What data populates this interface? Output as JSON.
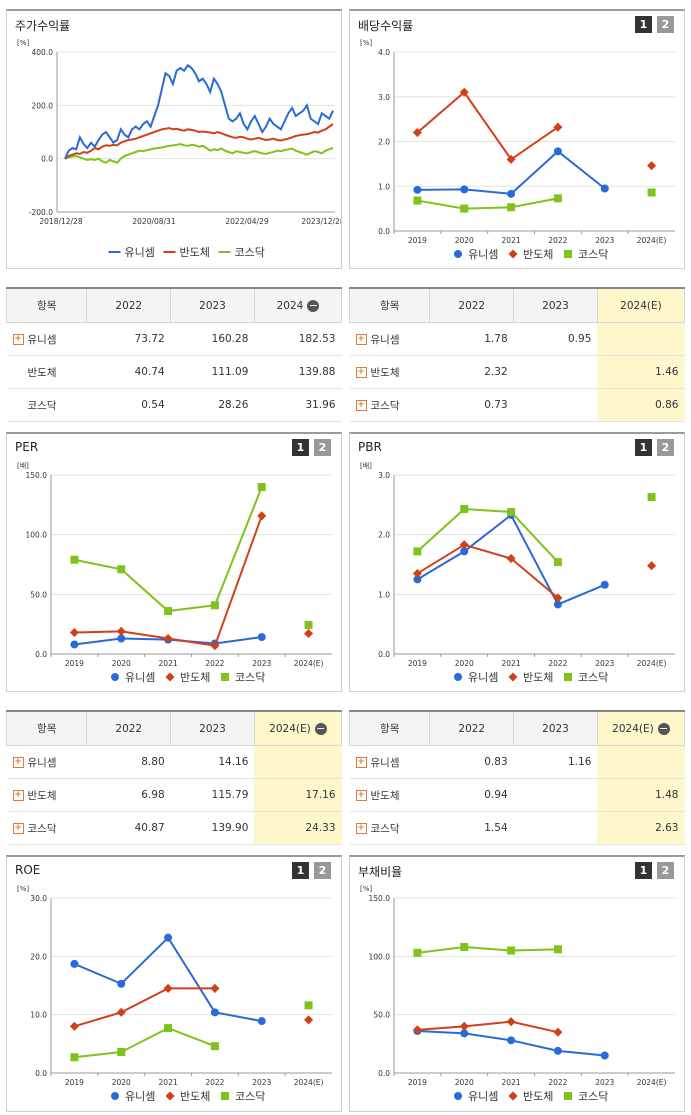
{
  "panels": {
    "price": {
      "title": "주가수익률"
    },
    "dividend": {
      "title": "배당수익률",
      "btn1": "1",
      "btn2": "2"
    },
    "per": {
      "title": "PER",
      "btn1": "1",
      "btn2": "2"
    },
    "pbr": {
      "title": "PBR",
      "btn1": "1",
      "btn2": "2"
    },
    "roe": {
      "title": "ROE",
      "btn1": "1",
      "btn2": "2"
    },
    "debt": {
      "title": "부채비율",
      "btn1": "1",
      "btn2": "2"
    }
  },
  "legend": [
    "유니셈",
    "반도체",
    "코스닥"
  ],
  "colors": {
    "series1": "#2a6ad8",
    "series2": "#d2401a",
    "series3": "#7fc31c"
  },
  "chart_data": [
    {
      "id": "price",
      "type": "line",
      "unit": "[%]",
      "yticks": [
        "400.0",
        "200.0",
        "0.0",
        "-200.0"
      ],
      "ylim": [
        -200,
        400
      ],
      "xticks": [
        "2018/12/28",
        "2020/08/31",
        "2022/04/29",
        "2023/12/28"
      ],
      "series": [
        {
          "name": "유니셈",
          "values": [
            0,
            30,
            40,
            35,
            80,
            55,
            40,
            60,
            45,
            70,
            90,
            100,
            80,
            60,
            70,
            110,
            90,
            80,
            110,
            120,
            110,
            130,
            140,
            120,
            160,
            200,
            260,
            320,
            310,
            280,
            330,
            340,
            330,
            350,
            340,
            320,
            290,
            300,
            280,
            250,
            300,
            280,
            250,
            200,
            150,
            140,
            150,
            170,
            130,
            110,
            140,
            160,
            130,
            100,
            120,
            150,
            130,
            120,
            110,
            140,
            170,
            190,
            160,
            170,
            180,
            200,
            150,
            140,
            130,
            170,
            160,
            150,
            180
          ]
        },
        {
          "name": "반도체",
          "values": [
            0,
            10,
            15,
            20,
            18,
            25,
            22,
            30,
            40,
            35,
            45,
            50,
            48,
            52,
            50,
            60,
            65,
            70,
            72,
            75,
            80,
            85,
            90,
            95,
            100,
            105,
            110,
            112,
            115,
            110,
            112,
            108,
            105,
            110,
            108,
            105,
            100,
            102,
            100,
            98,
            95,
            100,
            95,
            90,
            85,
            80,
            78,
            82,
            80,
            75,
            72,
            75,
            78,
            74,
            70,
            72,
            75,
            70,
            68,
            72,
            75,
            80,
            85,
            88,
            90,
            92,
            95,
            100,
            98,
            105,
            110,
            120,
            130
          ]
        },
        {
          "name": "코스닥",
          "values": [
            0,
            5,
            8,
            10,
            5,
            0,
            -5,
            -2,
            -5,
            0,
            -10,
            -15,
            -5,
            -10,
            -15,
            0,
            10,
            15,
            20,
            25,
            30,
            28,
            32,
            35,
            38,
            40,
            42,
            45,
            48,
            50,
            52,
            55,
            50,
            48,
            52,
            50,
            45,
            48,
            40,
            30,
            35,
            32,
            38,
            30,
            25,
            20,
            28,
            25,
            22,
            20,
            25,
            28,
            24,
            20,
            18,
            22,
            25,
            30,
            28,
            32,
            35,
            38,
            30,
            25,
            20,
            15,
            22,
            28,
            25,
            20,
            30,
            35,
            40
          ]
        }
      ]
    },
    {
      "id": "dividend",
      "type": "line",
      "unit": "[%]",
      "categories": [
        "2019",
        "2020",
        "2021",
        "2022",
        "2023",
        "2024(E)"
      ],
      "yticks": [
        "4.0",
        "3.0",
        "2.0",
        "1.0",
        "0.0"
      ],
      "ylim": [
        0,
        4
      ],
      "series": [
        {
          "name": "유니셈",
          "values": [
            0.92,
            0.93,
            0.83,
            1.78,
            0.95,
            null
          ]
        },
        {
          "name": "반도체",
          "values": [
            2.2,
            3.1,
            1.6,
            2.32,
            null,
            1.46
          ]
        },
        {
          "name": "코스닥",
          "values": [
            0.68,
            0.5,
            0.53,
            0.73,
            null,
            0.86
          ]
        }
      ]
    },
    {
      "id": "per",
      "type": "line",
      "unit": "[배]",
      "categories": [
        "2019",
        "2020",
        "2021",
        "2022",
        "2023",
        "2024(E)"
      ],
      "yticks": [
        "150.0",
        "100.0",
        "50.0",
        "0.0"
      ],
      "ylim": [
        0,
        150
      ],
      "series": [
        {
          "name": "유니셈",
          "values": [
            8,
            13,
            12,
            8.8,
            14.16,
            null
          ]
        },
        {
          "name": "반도체",
          "values": [
            18,
            19,
            13,
            6.98,
            115.79,
            17.16
          ]
        },
        {
          "name": "코스닥",
          "values": [
            79,
            71,
            36,
            40.87,
            139.9,
            24.33
          ]
        }
      ]
    },
    {
      "id": "pbr",
      "type": "line",
      "unit": "[배]",
      "categories": [
        "2019",
        "2020",
        "2021",
        "2022",
        "2023",
        "2024(E)"
      ],
      "yticks": [
        "3.0",
        "2.0",
        "1.0",
        "0.0"
      ],
      "ylim": [
        0,
        3
      ],
      "series": [
        {
          "name": "유니셈",
          "values": [
            1.25,
            1.72,
            2.33,
            0.83,
            1.16,
            null
          ]
        },
        {
          "name": "반도체",
          "values": [
            1.35,
            1.83,
            1.6,
            0.94,
            null,
            1.48
          ]
        },
        {
          "name": "코스닥",
          "values": [
            1.72,
            2.43,
            2.38,
            1.54,
            null,
            2.63
          ]
        }
      ]
    },
    {
      "id": "roe",
      "type": "line",
      "unit": "[%]",
      "categories": [
        "2019",
        "2020",
        "2021",
        "2022",
        "2023",
        "2024(E)"
      ],
      "yticks": [
        "30.0",
        "20.0",
        "10.0",
        "0.0"
      ],
      "ylim": [
        0,
        30
      ],
      "series": [
        {
          "name": "유니셈",
          "values": [
            18.7,
            15.3,
            23.2,
            10.4,
            8.9,
            null
          ]
        },
        {
          "name": "반도체",
          "values": [
            8,
            10.4,
            14.5,
            14.5,
            null,
            9.1
          ]
        },
        {
          "name": "코스닥",
          "values": [
            2.7,
            3.6,
            7.7,
            4.6,
            null,
            11.6
          ]
        }
      ]
    },
    {
      "id": "debt",
      "type": "line",
      "unit": "[%]",
      "categories": [
        "2019",
        "2020",
        "2021",
        "2022",
        "2023",
        "2024(E)"
      ],
      "yticks": [
        "150.0",
        "100.0",
        "50.0",
        "0.0"
      ],
      "ylim": [
        0,
        150
      ],
      "series": [
        {
          "name": "유니셈",
          "values": [
            36,
            34,
            28,
            19,
            15,
            null
          ]
        },
        {
          "name": "반도체",
          "values": [
            37,
            40,
            44,
            35,
            null,
            null
          ]
        },
        {
          "name": "코스닥",
          "values": [
            103,
            108,
            105,
            106,
            null,
            null
          ]
        }
      ]
    }
  ],
  "tables": {
    "price": {
      "head": [
        "항목",
        "2022",
        "2023",
        "2024"
      ],
      "rows": [
        {
          "label": "유니셈",
          "plus": true,
          "v": [
            "73.72",
            "160.28",
            "182.53"
          ]
        },
        {
          "label": "반도체",
          "plus": false,
          "v": [
            "40.74",
            "111.09",
            "139.88"
          ]
        },
        {
          "label": "코스닥",
          "plus": false,
          "v": [
            "0.54",
            "28.26",
            "31.96"
          ]
        }
      ]
    },
    "dividend": {
      "head": [
        "항목",
        "2022",
        "2023",
        "2024(E)"
      ],
      "rows": [
        {
          "label": "유니셈",
          "plus": true,
          "v": [
            "1.78",
            "0.95",
            ""
          ]
        },
        {
          "label": "반도체",
          "plus": true,
          "v": [
            "2.32",
            "",
            "1.46"
          ]
        },
        {
          "label": "코스닥",
          "plus": true,
          "v": [
            "0.73",
            "",
            "0.86"
          ]
        }
      ]
    },
    "per": {
      "head": [
        "항목",
        "2022",
        "2023",
        "2024(E)"
      ],
      "rows": [
        {
          "label": "유니셈",
          "plus": true,
          "v": [
            "8.80",
            "14.16",
            ""
          ]
        },
        {
          "label": "반도체",
          "plus": true,
          "v": [
            "6.98",
            "115.79",
            "17.16"
          ]
        },
        {
          "label": "코스닥",
          "plus": true,
          "v": [
            "40.87",
            "139.90",
            "24.33"
          ]
        }
      ]
    },
    "pbr": {
      "head": [
        "항목",
        "2022",
        "2023",
        "2024(E)"
      ],
      "rows": [
        {
          "label": "유니셈",
          "plus": true,
          "v": [
            "0.83",
            "1.16",
            ""
          ]
        },
        {
          "label": "반도체",
          "plus": true,
          "v": [
            "0.94",
            "",
            "1.48"
          ]
        },
        {
          "label": "코스닥",
          "plus": true,
          "v": [
            "1.54",
            "",
            "2.63"
          ]
        }
      ]
    }
  }
}
